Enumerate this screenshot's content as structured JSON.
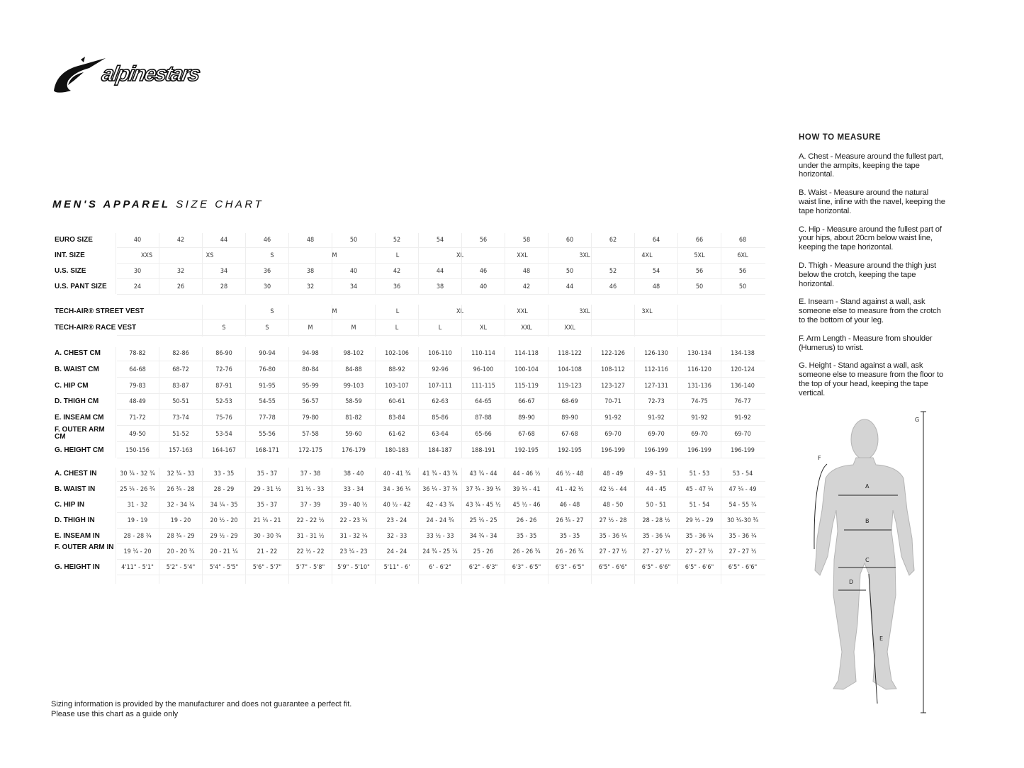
{
  "brand": {
    "logo_text": "alpinestars"
  },
  "title": {
    "bold": "MEN'S APPAREL",
    "light": "SIZE CHART"
  },
  "size_rows": [
    {
      "label": "EURO SIZE",
      "values": [
        "40",
        "42",
        "44",
        "46",
        "48",
        "50",
        "52",
        "54",
        "56",
        "58",
        "60",
        "62",
        "64",
        "66",
        "68"
      ]
    },
    {
      "label": "INT. SIZE",
      "values": [
        "XXS",
        "XS",
        "S",
        "M",
        "L",
        "XL",
        "XXL",
        "3XL",
        "4XL",
        "5XL",
        "6XL"
      ]
    },
    {
      "label": "U.S. SIZE",
      "values": [
        "30",
        "32",
        "34",
        "36",
        "38",
        "40",
        "42",
        "44",
        "46",
        "48",
        "50",
        "52",
        "54",
        "56",
        "56"
      ]
    },
    {
      "label": "U.S. PANT SIZE",
      "values": [
        "24",
        "26",
        "28",
        "30",
        "32",
        "34",
        "36",
        "38",
        "40",
        "42",
        "44",
        "46",
        "48",
        "50",
        "50"
      ]
    }
  ],
  "vest_rows": [
    {
      "label": "TECH-AIR® STREET VEST",
      "values": [
        "S",
        "M",
        "L",
        "XL",
        "XXL",
        "3XL",
        "3XL"
      ]
    },
    {
      "label": "TECH-AIR® RACE VEST",
      "values": [
        "S",
        "S",
        "M",
        "M",
        "L",
        "L",
        "XL",
        "XXL",
        "XXL"
      ]
    }
  ],
  "cm_rows": [
    {
      "label": "A. CHEST CM",
      "values": [
        "78-82",
        "82-86",
        "86-90",
        "90-94",
        "94-98",
        "98-102",
        "102-106",
        "106-110",
        "110-114",
        "114-118",
        "118-122",
        "122-126",
        "126-130",
        "130-134",
        "134-138"
      ]
    },
    {
      "label": "B. WAIST CM",
      "values": [
        "64-68",
        "68-72",
        "72-76",
        "76-80",
        "80-84",
        "84-88",
        "88-92",
        "92-96",
        "96-100",
        "100-104",
        "104-108",
        "108-112",
        "112-116",
        "116-120",
        "120-124"
      ]
    },
    {
      "label": "C. HIP CM",
      "values": [
        "79-83",
        "83-87",
        "87-91",
        "91-95",
        "95-99",
        "99-103",
        "103-107",
        "107-111",
        "111-115",
        "115-119",
        "119-123",
        "123-127",
        "127-131",
        "131-136",
        "136-140"
      ]
    },
    {
      "label": "D. THIGH CM",
      "values": [
        "48-49",
        "50-51",
        "52-53",
        "54-55",
        "56-57",
        "58-59",
        "60-61",
        "62-63",
        "64-65",
        "66-67",
        "68-69",
        "70-71",
        "72-73",
        "74-75",
        "76-77"
      ]
    },
    {
      "label": "E. INSEAM CM",
      "values": [
        "71-72",
        "73-74",
        "75-76",
        "77-78",
        "79-80",
        "81-82",
        "83-84",
        "85-86",
        "87-88",
        "89-90",
        "89-90",
        "91-92",
        "91-92",
        "91-92",
        "91-92"
      ]
    },
    {
      "label": "F. OUTER ARM CM",
      "values": [
        "49-50",
        "51-52",
        "53-54",
        "55-56",
        "57-58",
        "59-60",
        "61-62",
        "63-64",
        "65-66",
        "67-68",
        "67-68",
        "69-70",
        "69-70",
        "69-70",
        "69-70"
      ]
    },
    {
      "label": "G. HEIGHT CM",
      "values": [
        "150-156",
        "157-163",
        "164-167",
        "168-171",
        "172-175",
        "176-179",
        "180-183",
        "184-187",
        "188-191",
        "192-195",
        "192-195",
        "196-199",
        "196-199",
        "196-199",
        "196-199"
      ]
    }
  ],
  "in_rows": [
    {
      "label": "A. CHEST IN",
      "values": [
        "30 ¾ - 32 ¾",
        "32 ¾ - 33",
        "33 - 35",
        "35 - 37",
        "37 - 38",
        "38 - 40",
        "40 - 41 ¾",
        "41 ¾ - 43 ¾",
        "43 ¾ - 44",
        "44 - 46 ½",
        "46 ½ - 48",
        "48 - 49",
        "49 - 51",
        "51 - 53",
        "53 - 54"
      ]
    },
    {
      "label": "B. WAIST IN",
      "values": [
        "25 ¼ - 26 ¾",
        "26 ¾ - 28",
        "28 - 29",
        "29 - 31 ½",
        "31 ½ - 33",
        "33 - 34",
        "34 - 36 ¼",
        "36 ¼ - 37 ¾",
        "37 ¾ - 39 ¼",
        "39 ¼ - 41",
        "41 - 42 ½",
        "42 ½ - 44",
        "44 - 45",
        "45 - 47 ¼",
        "47 ¼ - 49"
      ]
    },
    {
      "label": "C. HIP IN",
      "values": [
        "31 - 32",
        "32 - 34 ¼",
        "34 ¼ - 35",
        "35 - 37",
        "37 - 39",
        "39 - 40 ½",
        "40 ½ - 42",
        "42 - 43 ¾",
        "43 ¾ - 45 ½",
        "45 ½ - 46",
        "46 - 48",
        "48 - 50",
        "50 - 51",
        "51 - 54",
        "54 - 55 ¾"
      ]
    },
    {
      "label": "D. THIGH IN",
      "values": [
        "19 - 19",
        "19 - 20",
        "20 ½ - 20",
        "21 ¼ - 21",
        "22 - 22 ½",
        "22 - 23 ¼",
        "23 - 24",
        "24 - 24 ¾",
        "25 ¼ - 25",
        "26 - 26",
        "26 ¾ - 27",
        "27 ½ - 28",
        "28 - 28 ½",
        "29 ½ - 29",
        "30 ¼-30 ¾"
      ]
    },
    {
      "label": "E. INSEAM IN",
      "values": [
        "28 - 28 ¾",
        "28 ¾ - 29",
        "29 ½ - 29",
        "30 - 30 ¾",
        "31 - 31 ½",
        "31 - 32 ¼",
        "32 - 33",
        "33 ½ - 33",
        "34 ¾ - 34",
        "35 - 35",
        "35 - 35",
        "35 - 36 ¼",
        "35 - 36 ¼",
        "35 - 36 ¼",
        "35 - 36 ¼"
      ]
    },
    {
      "label": "F. OUTER ARM IN",
      "values": [
        "19 ¼ - 20",
        "20 - 20 ¾",
        "20 - 21 ¼",
        "21 - 22",
        "22 ½ - 22",
        "23 ¼ - 23",
        "24 - 24",
        "24 ¾ - 25 ¼",
        "25 - 26",
        "26 - 26 ¾",
        "26 - 26 ¾",
        "27 - 27 ½",
        "27 - 27 ½",
        "27 - 27 ½",
        "27 - 27 ½"
      ]
    },
    {
      "label": "G. HEIGHT IN",
      "values": [
        "4'11\" - 5'1\"",
        "5'2\" - 5'4\"",
        "5'4\" - 5'5\"",
        "5'6\" - 5'7\"",
        "5'7\" - 5'8\"",
        "5'9\" - 5'10\"",
        "5'11\" - 6'",
        "6' - 6'2\"",
        "6'2\" - 6'3\"",
        "6'3\" - 6'5\"",
        "6'3\" - 6'5\"",
        "6'5\" - 6'6\"",
        "6'5\" - 6'6\"",
        "6'5\" - 6'6\"",
        "6'5\" - 6'6\""
      ]
    }
  ],
  "how_to_measure": {
    "heading": "HOW TO MEASURE",
    "items": [
      "A. Chest - Measure around the fullest part, under the armpits, keeping the tape horizontal.",
      "B. Waist - Measure around the natural waist line, inline with the navel, keeping the tape horizontal.",
      "C. Hip - Measure around the fullest part of your hips, about 20cm below waist line, keeping the tape horizontal.",
      "D. Thigh - Measure around the thigh just below the crotch, keeping the tape horizontal.",
      "E. Inseam - Stand against a wall, ask someone else to measure from the crotch to the bottom of your leg.",
      "F. Arm Length - Measure from shoulder (Humerus) to wrist.",
      "G. Height - Stand against a wall, ask someone else to measure from the floor to the top of your head, keeping the tape vertical."
    ]
  },
  "figure_labels": {
    "a": "A",
    "b": "B",
    "c": "C",
    "d": "D",
    "e": "E",
    "f": "F",
    "g": "G"
  },
  "footer": {
    "line1": "Sizing information is provided by the manufacturer and does not guarantee a perfect fit.",
    "line2": "Please use this chart as a guide only"
  },
  "colors": {
    "figure_fill": "#d4d4d4",
    "figure_stroke": "#b5b5b5",
    "text": "#222222",
    "grid": "#eeeeee"
  }
}
